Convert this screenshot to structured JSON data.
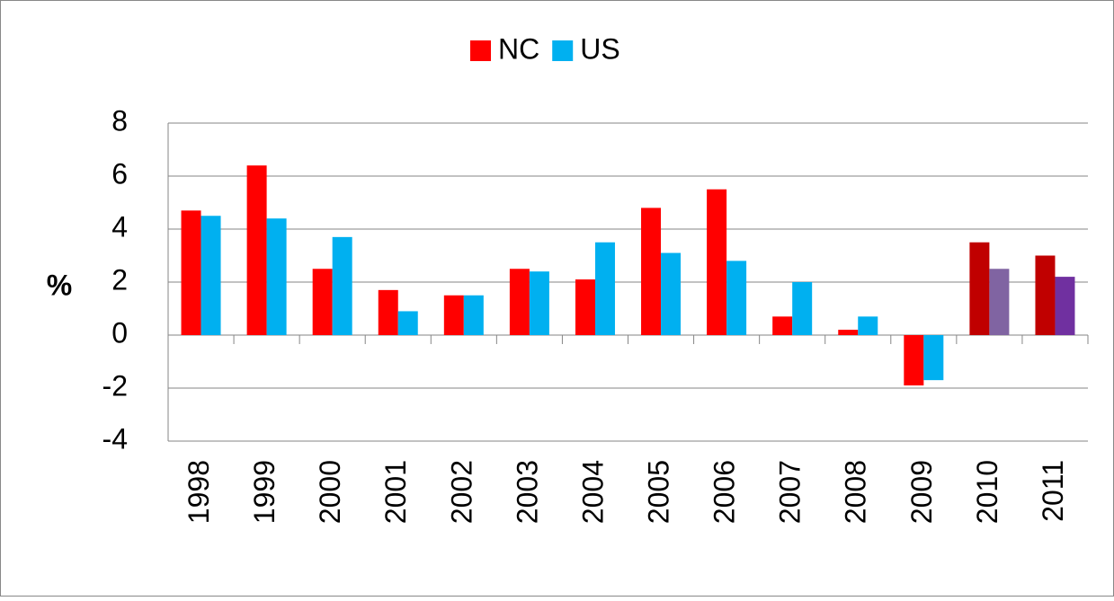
{
  "chart_data": {
    "type": "bar",
    "y_label": "%",
    "categories": [
      "1998",
      "1999",
      "2000",
      "2001",
      "2002",
      "2003",
      "2004",
      "2005",
      "2006",
      "2007",
      "2008",
      "2009",
      "2010",
      "2011"
    ],
    "series": [
      {
        "name": "NC",
        "color": "#ff0000",
        "colors": [
          "#ff0000",
          "#ff0000",
          "#ff0000",
          "#ff0000",
          "#ff0000",
          "#ff0000",
          "#ff0000",
          "#ff0000",
          "#ff0000",
          "#ff0000",
          "#ff0000",
          "#ff0000",
          "#c00000",
          "#c00000"
        ],
        "values": [
          4.7,
          6.4,
          2.5,
          1.7,
          1.5,
          2.5,
          2.1,
          4.8,
          5.5,
          0.7,
          0.2,
          -1.9,
          3.5,
          3.0
        ]
      },
      {
        "name": "US",
        "color": "#00b0f0",
        "colors": [
          "#00b0f0",
          "#00b0f0",
          "#00b0f0",
          "#00b0f0",
          "#00b0f0",
          "#00b0f0",
          "#00b0f0",
          "#00b0f0",
          "#00b0f0",
          "#00b0f0",
          "#00b0f0",
          "#00b0f0",
          "#8064a2",
          "#7030a0"
        ],
        "values": [
          4.5,
          4.4,
          3.7,
          0.9,
          1.5,
          2.4,
          3.5,
          3.1,
          2.8,
          2.0,
          0.7,
          -1.7,
          2.5,
          2.2
        ]
      }
    ],
    "ylim": [
      -4,
      8
    ],
    "yticks": [
      -4,
      -2,
      0,
      2,
      4,
      6,
      8
    ],
    "grid": true,
    "legend": "top"
  }
}
